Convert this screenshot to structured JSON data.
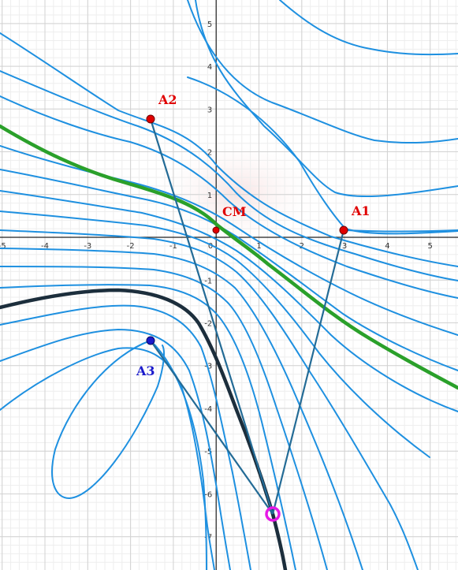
{
  "chart_data": {
    "type": "line",
    "x_ticks": [
      "-5",
      "-4",
      "-3",
      "-2",
      "-1",
      "0",
      "1",
      "2",
      "3",
      "4",
      "5"
    ],
    "y_ticks": [
      "5",
      "4",
      "3",
      "2",
      "1",
      "-1",
      "-2",
      "-3",
      "-4",
      "-5",
      "-6",
      "-7"
    ],
    "xlim": [
      -5.05,
      5.65
    ],
    "ylim": [
      -7.78,
      5.55
    ],
    "grid": true,
    "points": [
      {
        "label": "A1",
        "x": 3.0,
        "y": 0.0,
        "color": "#e00000"
      },
      {
        "label": "A2",
        "x": -1.5,
        "y": 2.6,
        "color": "#e00000"
      },
      {
        "label": "CM",
        "x": 0.0,
        "y": 0.0,
        "color": "#e00000"
      },
      {
        "label": "A3",
        "x": -1.5,
        "y": -2.6,
        "color": "#1a1acc"
      }
    ],
    "focus_point": {
      "x": 1.35,
      "y": -6.6,
      "color": "#e619e6"
    },
    "colors": {
      "field_lines": "#1e90e0",
      "highlight_line": "#2aa02a",
      "dark_curve": "#1c2e3c",
      "segments": "#236b96",
      "label_red": "#e00000",
      "label_blue": "#1a1acc"
    }
  }
}
